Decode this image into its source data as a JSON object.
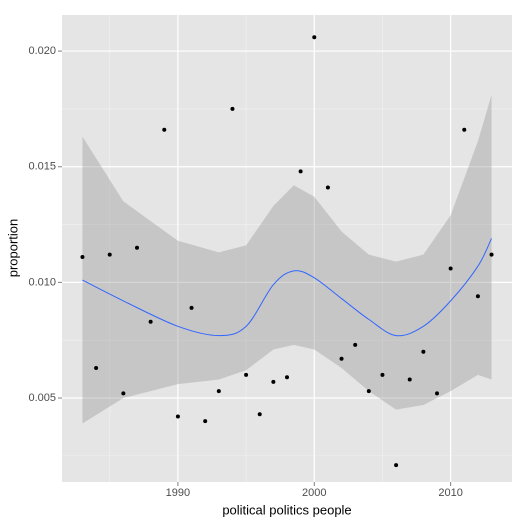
{
  "chart_data": {
    "type": "scatter",
    "x_label": "political politics people",
    "y_label": "proportion",
    "x": [
      1983,
      1984,
      1985,
      1986,
      1987,
      1988,
      1989,
      1990,
      1991,
      1992,
      1993,
      1994,
      1995,
      1996,
      1997,
      1998,
      1999,
      2000,
      2001,
      2002,
      2003,
      2004,
      2005,
      2006,
      2007,
      2008,
      2009,
      2010,
      2011,
      2012,
      2013
    ],
    "values": [
      0.0111,
      0.0063,
      0.0112,
      0.0052,
      0.0115,
      0.0083,
      0.0166,
      0.0042,
      0.0089,
      0.004,
      0.0053,
      0.0175,
      0.006,
      0.0043,
      0.0057,
      0.0059,
      0.0148,
      0.0206,
      0.0141,
      0.0067,
      0.0073,
      0.0053,
      0.006,
      0.0021,
      0.0058,
      0.007,
      0.0052,
      0.0106,
      0.0166,
      0.0094,
      0.0112
    ],
    "color": "#000000",
    "smooth": {
      "color": "#3366ff",
      "band_color": "#999999",
      "x": [
        1983,
        1986,
        1990,
        1993,
        1995,
        1997,
        1998.5,
        2000,
        2002,
        2004,
        2006,
        2008,
        2010,
        2012,
        2013
      ],
      "values": [
        0.0101,
        0.0092,
        0.0081,
        0.0077,
        0.0081,
        0.0099,
        0.0105,
        0.0102,
        0.0093,
        0.0084,
        0.0077,
        0.0081,
        0.0092,
        0.0107,
        0.0119
      ],
      "lower": [
        0.0039,
        0.005,
        0.0056,
        0.0058,
        0.0062,
        0.0071,
        0.0073,
        0.0071,
        0.0063,
        0.0053,
        0.0045,
        0.0047,
        0.0053,
        0.006,
        0.0058
      ],
      "upper": [
        0.0163,
        0.0135,
        0.0118,
        0.0113,
        0.0116,
        0.0133,
        0.0142,
        0.0137,
        0.0122,
        0.0112,
        0.0109,
        0.0112,
        0.0129,
        0.0161,
        0.0181
      ]
    },
    "xlim": [
      1981.5,
      2014.5
    ],
    "ylim": [
      0.00137,
      0.02156
    ],
    "xticks": [
      1990,
      2000,
      2010
    ],
    "yticks": [
      0.005,
      {
        "value": 0.01,
        "label": "0.010"
      },
      0.015,
      {
        "value": 0.02,
        "label": "0.020"
      }
    ],
    "grid": true
  }
}
